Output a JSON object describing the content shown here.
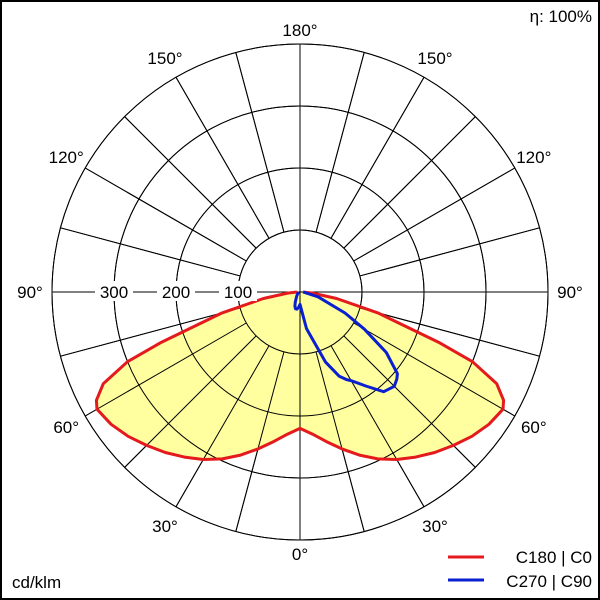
{
  "chart_data": {
    "type": "polar",
    "efficiency_label": "η: 100%",
    "unit_label": "cd/klm",
    "angle_labels": [
      "180°",
      "150°",
      "150°",
      "120°",
      "120°",
      "90°",
      "90°",
      "60°",
      "60°",
      "30°",
      "30°",
      "0°"
    ],
    "radial_labels": [
      "300",
      "200",
      "100"
    ],
    "radial_ticks": [
      100,
      200,
      300
    ],
    "rmax": 400,
    "angle_grid_step_deg": 15,
    "legend": [
      {
        "label": "C180 | C0",
        "color": "#e41a1c"
      },
      {
        "label": "C270 | C90",
        "color": "#0a1fd0"
      }
    ],
    "series": [
      {
        "name": "C180 | C0",
        "color": "#e41a1c",
        "fill": "#ffffa0",
        "left": [
          [
            0,
            220
          ],
          [
            5,
            230
          ],
          [
            10,
            245
          ],
          [
            15,
            262
          ],
          [
            20,
            280
          ],
          [
            25,
            297
          ],
          [
            30,
            312
          ],
          [
            35,
            325
          ],
          [
            40,
            338
          ],
          [
            45,
            350
          ],
          [
            50,
            362
          ],
          [
            55,
            372
          ],
          [
            60,
            378
          ],
          [
            62,
            372
          ],
          [
            65,
            350
          ],
          [
            68,
            300
          ],
          [
            70,
            240
          ],
          [
            75,
            130
          ],
          [
            80,
            60
          ],
          [
            85,
            20
          ],
          [
            90,
            5
          ]
        ],
        "right": [
          [
            0,
            220
          ],
          [
            5,
            230
          ],
          [
            10,
            245
          ],
          [
            15,
            262
          ],
          [
            20,
            280
          ],
          [
            25,
            297
          ],
          [
            30,
            312
          ],
          [
            35,
            325
          ],
          [
            40,
            338
          ],
          [
            45,
            350
          ],
          [
            50,
            362
          ],
          [
            55,
            372
          ],
          [
            60,
            378
          ],
          [
            62,
            372
          ],
          [
            65,
            350
          ],
          [
            68,
            300
          ],
          [
            70,
            240
          ],
          [
            75,
            130
          ],
          [
            80,
            60
          ],
          [
            85,
            20
          ],
          [
            90,
            5
          ]
        ]
      },
      {
        "name": "C270 | C90",
        "color": "#0a1fd0",
        "left": [
          [
            0,
            20
          ],
          [
            5,
            25
          ],
          [
            10,
            28
          ],
          [
            15,
            28
          ],
          [
            20,
            24
          ],
          [
            25,
            18
          ],
          [
            30,
            13
          ],
          [
            40,
            8
          ],
          [
            60,
            4
          ],
          [
            90,
            2
          ]
        ],
        "right": [
          [
            0,
            20
          ],
          [
            10,
            60
          ],
          [
            20,
            120
          ],
          [
            25,
            150
          ],
          [
            28,
            160
          ],
          [
            30,
            165
          ],
          [
            35,
            185
          ],
          [
            40,
            210
          ],
          [
            45,
            215
          ],
          [
            48,
            210
          ],
          [
            50,
            205
          ],
          [
            55,
            170
          ],
          [
            60,
            120
          ],
          [
            65,
            80
          ],
          [
            75,
            30
          ],
          [
            90,
            5
          ]
        ]
      }
    ]
  }
}
